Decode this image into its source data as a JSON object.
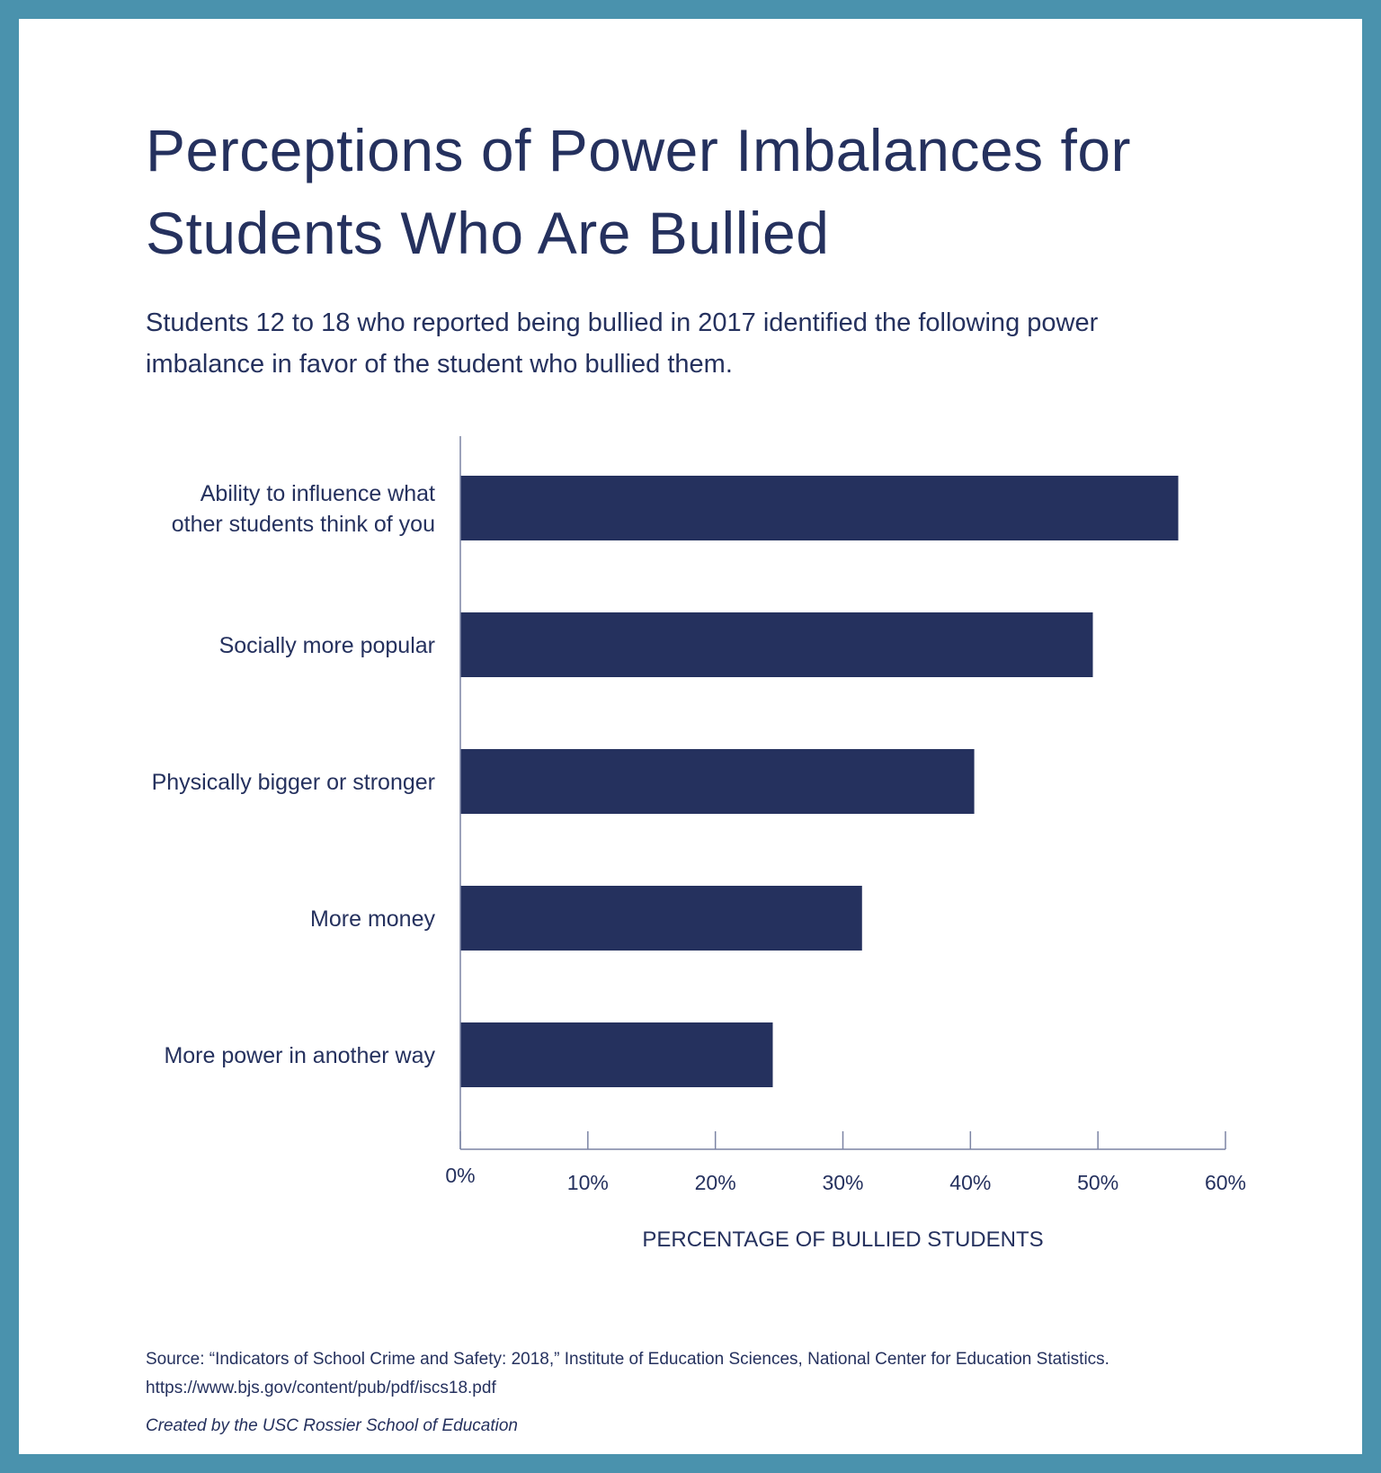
{
  "chart_data": {
    "type": "bar",
    "orientation": "horizontal",
    "title": "Perceptions of Power Imbalances for Students Who Are Bullied",
    "subtitle": "Students 12 to 18 who reported being bullied in 2017 identified the following power imbalance in favor of the student who bullied them.",
    "categories": [
      [
        "Ability to influence what",
        "other students think of you"
      ],
      [
        "Socially more popular"
      ],
      [
        "Physically bigger or stronger"
      ],
      [
        "More money"
      ],
      [
        "More power in another way"
      ]
    ],
    "values": [
      56.3,
      49.6,
      40.3,
      31.5,
      24.5
    ],
    "xlabel": "PERCENTAGE OF BULLIED STUDENTS",
    "ylabel": "",
    "xlim": [
      0,
      60
    ],
    "ticks": [
      0,
      10,
      20,
      30,
      40,
      50,
      60
    ],
    "tick_labels": [
      "0%",
      "10%",
      "20%",
      "30%",
      "40%",
      "50%",
      "60%"
    ],
    "grid": false,
    "bar_color": "#25315e"
  },
  "footer": {
    "source_line1": "Source: “Indicators of School Crime and Safety: 2018,” Institute of Education Sciences, National Center for Education Statistics.",
    "source_line2": "https://www.bjs.gov/content/pub/pdf/iscs18.pdf",
    "credit": "Created by the USC Rossier School of Education"
  },
  "colors": {
    "border": "#4a92ad",
    "text": "#25315e",
    "axis": "#7c84a4"
  }
}
